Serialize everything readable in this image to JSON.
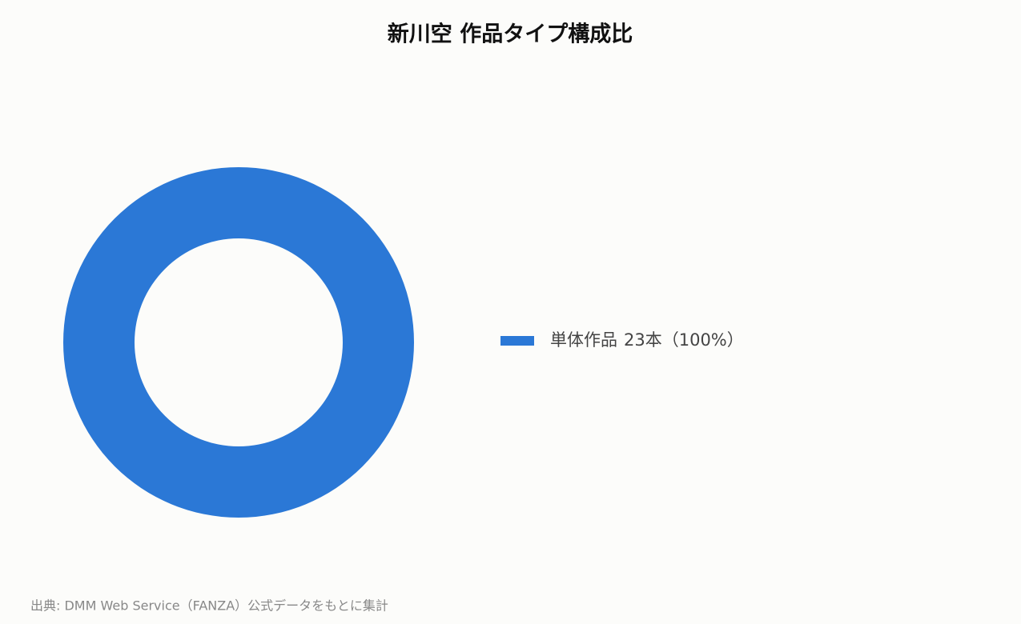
{
  "chart_data": {
    "type": "donut",
    "title": "新川空 作品タイプ構成比",
    "categories": [
      "単体作品"
    ],
    "values": [
      23
    ],
    "value_labels": [
      "23本（100%）"
    ],
    "colors": [
      "#2b78d6"
    ],
    "source": "出典: DMM Web Service（FANZA）公式データをもとに集計"
  }
}
